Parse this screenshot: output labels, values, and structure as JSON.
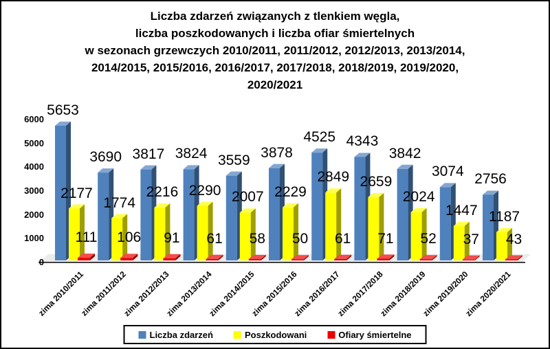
{
  "title": {
    "lines": [
      "Liczba zdarzeń związanych z tlenkiem węgla,",
      "liczba poszkodowanych i liczba ofiar śmiertelnych",
      "w sezonach grzewczych 2010/2011, 2011/2012, 2012/2013, 2013/2014,",
      "2014/2015, 2015/2016, 2016/2017, 2017/2018, 2018/2019, 2019/2020,",
      "2020/2021"
    ]
  },
  "chart_data": {
    "type": "bar",
    "style": "3d-clustered-column",
    "categories": [
      "zima 2010/2011",
      "zima 2011/2012",
      "zima 2012/2013",
      "zima 2013/2014",
      "zima 2014/2015",
      "zima 2015/2016",
      "zima 2016/2017",
      "zima 2017/2018",
      "zima 2018/2019",
      "zima 2019/2020",
      "zima 2020/2021"
    ],
    "series": [
      {
        "name": "Liczba zdarzeń",
        "color": "#4F81BD",
        "values": [
          5653,
          3690,
          3817,
          3824,
          3559,
          3878,
          4525,
          4343,
          3842,
          3074,
          2756
        ]
      },
      {
        "name": "Poszkodowani",
        "color": "#FFFF00",
        "values": [
          2177,
          1774,
          2216,
          2290,
          2007,
          2229,
          2849,
          2659,
          2024,
          1447,
          1187
        ]
      },
      {
        "name": "Ofiary śmiertelne",
        "color": "#EE0000",
        "values": [
          111,
          106,
          91,
          61,
          58,
          50,
          61,
          71,
          52,
          37,
          43
        ]
      }
    ],
    "ylim": [
      0,
      6000
    ],
    "y_ticks": [
      0,
      1000,
      2000,
      3000,
      4000,
      5000,
      6000
    ],
    "grid": false,
    "data_labels": true,
    "legend_position": "bottom",
    "floor_color": "#EBEBEB",
    "axis_line_color": "#404040"
  }
}
